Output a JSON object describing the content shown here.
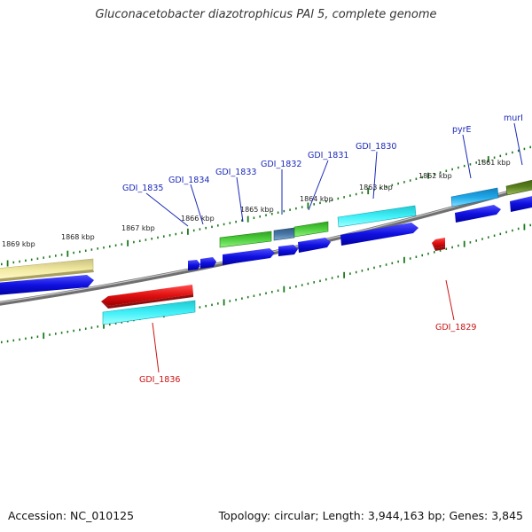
{
  "title": "Gluconacetobacter diazotrophicus PAl 5, complete genome",
  "footer": {
    "accession": "Accession: NC_010125",
    "topology": "Topology: circular; Length: 3,944,163 bp; Genes: 3,845"
  },
  "scale_labels": [
    "1869 kbp",
    "1868 kbp",
    "1867 kbp",
    "1866 kbp",
    "1865 kbp",
    "1864 kbp",
    "1863 kbp",
    "1862 kbp",
    "1861 kbp"
  ],
  "genes_forward": [
    "GDI_1835",
    "GDI_1834",
    "GDI_1833",
    "GDI_1832",
    "GDI_1831",
    "GDI_1830",
    "pyrE",
    "murI"
  ],
  "genes_reverse": [
    "GDI_1836",
    "GDI_1829"
  ],
  "colors": {
    "blue_cds": "#1010e0",
    "red_gene": "#e01010",
    "cyan_gene": "#20e8f0",
    "green_gene": "#40c030",
    "khaki_gene": "#f0e090",
    "steel_gene": "#4070a0",
    "skyblue_gene": "#20a8e8",
    "olive_gene": "#5a8020",
    "backbone": "#808080",
    "tick": "#1a7a1a",
    "label_blue": "#1b2ab8",
    "label_red": "#cc1111"
  }
}
